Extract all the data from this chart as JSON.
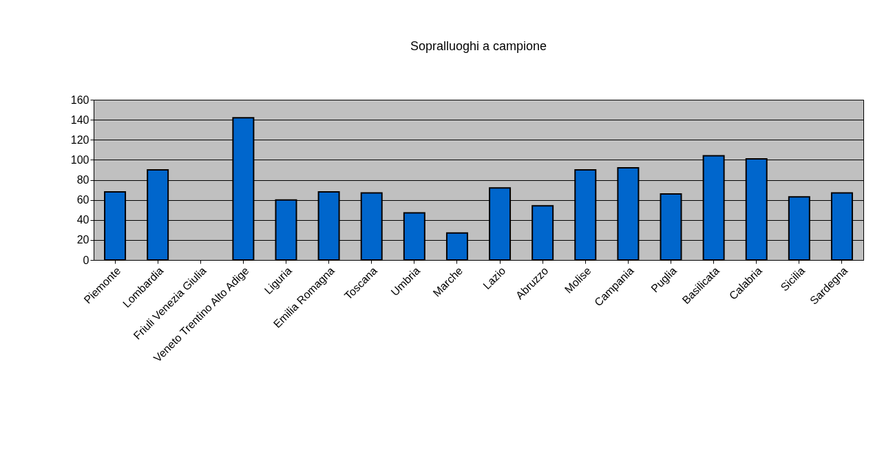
{
  "chart_data": {
    "type": "bar",
    "title": "Sopralluoghi a campione",
    "categories": [
      "Piemonte",
      "Lombardia",
      "Friuli Venezia Giulia",
      "Veneto Trentino Alto Adige",
      "Liguria",
      "Emilia Romagna",
      "Toscana",
      "Umbria",
      "Marche",
      "Lazio",
      "Abruzzo",
      "Molise",
      "Campania",
      "Puglia",
      "Basilicata",
      "Calabria",
      "Sicilia",
      "Sardegna"
    ],
    "values": [
      68,
      90,
      null,
      142,
      60,
      68,
      67,
      47,
      27,
      72,
      54,
      90,
      92,
      66,
      104,
      101,
      63,
      67
    ],
    "color": "#0066cc",
    "ylim": [
      0,
      160
    ],
    "yticks": [
      0,
      20,
      40,
      60,
      80,
      100,
      120,
      140,
      160
    ],
    "grid": "y"
  }
}
